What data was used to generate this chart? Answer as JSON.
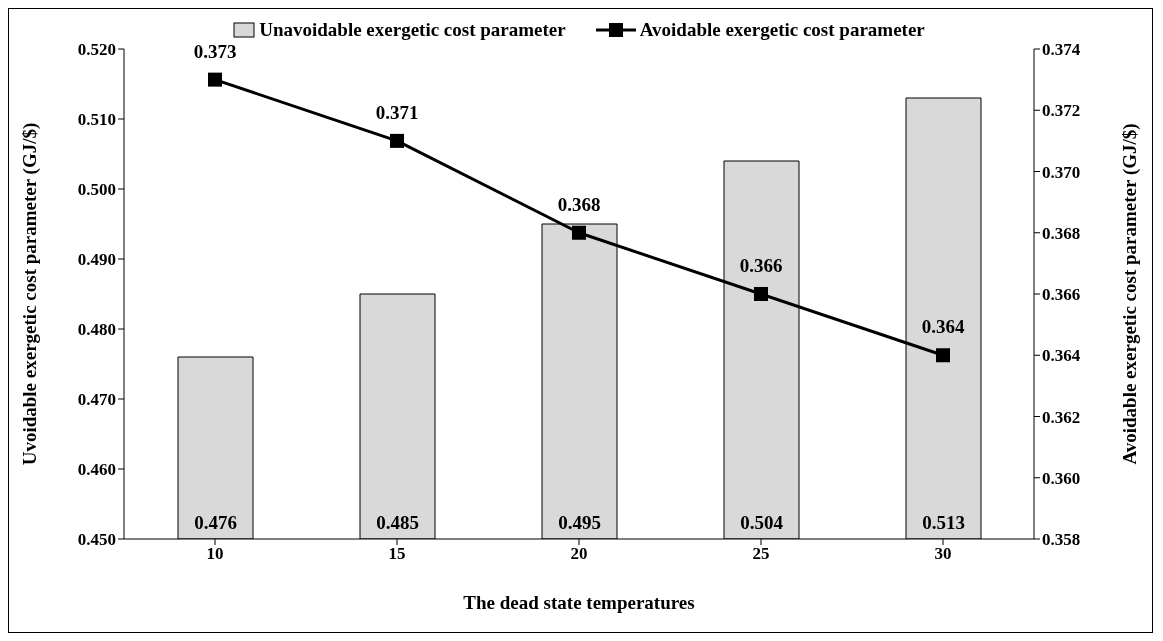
{
  "chart_data": {
    "type": "bar",
    "xlabel": "The dead state temperatures",
    "ylabel": "Uvoidable exergetic cost parameter (GJ/$)",
    "y2label": "Avoidable exergetic cost parameter (GJ/$)",
    "categories": [
      "10",
      "15",
      "20",
      "25",
      "30"
    ],
    "series": [
      {
        "name": "Unavoidable exergetic cost parameter",
        "color": "#d9d9d9",
        "values": [
          0.476,
          0.485,
          0.495,
          0.504,
          0.513
        ]
      },
      {
        "name": "Avoidable exergetic cost parameter",
        "type": "line",
        "axis": "y2",
        "color": "#000000",
        "values": [
          0.373,
          0.371,
          0.368,
          0.366,
          0.364
        ]
      }
    ],
    "ylim": [
      0.45,
      0.52
    ],
    "yticks": [
      {
        "value": 0.45,
        "label": "0.450"
      },
      {
        "value": 0.46,
        "label": "0.460"
      },
      {
        "value": 0.47,
        "label": "0.470"
      },
      {
        "value": 0.48,
        "label": "0.480"
      },
      {
        "value": 0.49,
        "label": "0.490"
      },
      {
        "value": 0.5,
        "label": "0.500"
      },
      {
        "value": 0.51,
        "label": "0.510"
      },
      {
        "value": 0.52,
        "label": "0.520"
      }
    ],
    "y2lim": [
      0.358,
      0.374
    ],
    "y2ticks": [
      0.358,
      {
        "value": 0.36,
        "label": "0.360"
      },
      0.362,
      0.364,
      0.366,
      0.368,
      {
        "value": 0.37,
        "label": "0.370"
      },
      0.372,
      0.374
    ],
    "data_labels": true,
    "legend": "top",
    "marker": "square"
  }
}
